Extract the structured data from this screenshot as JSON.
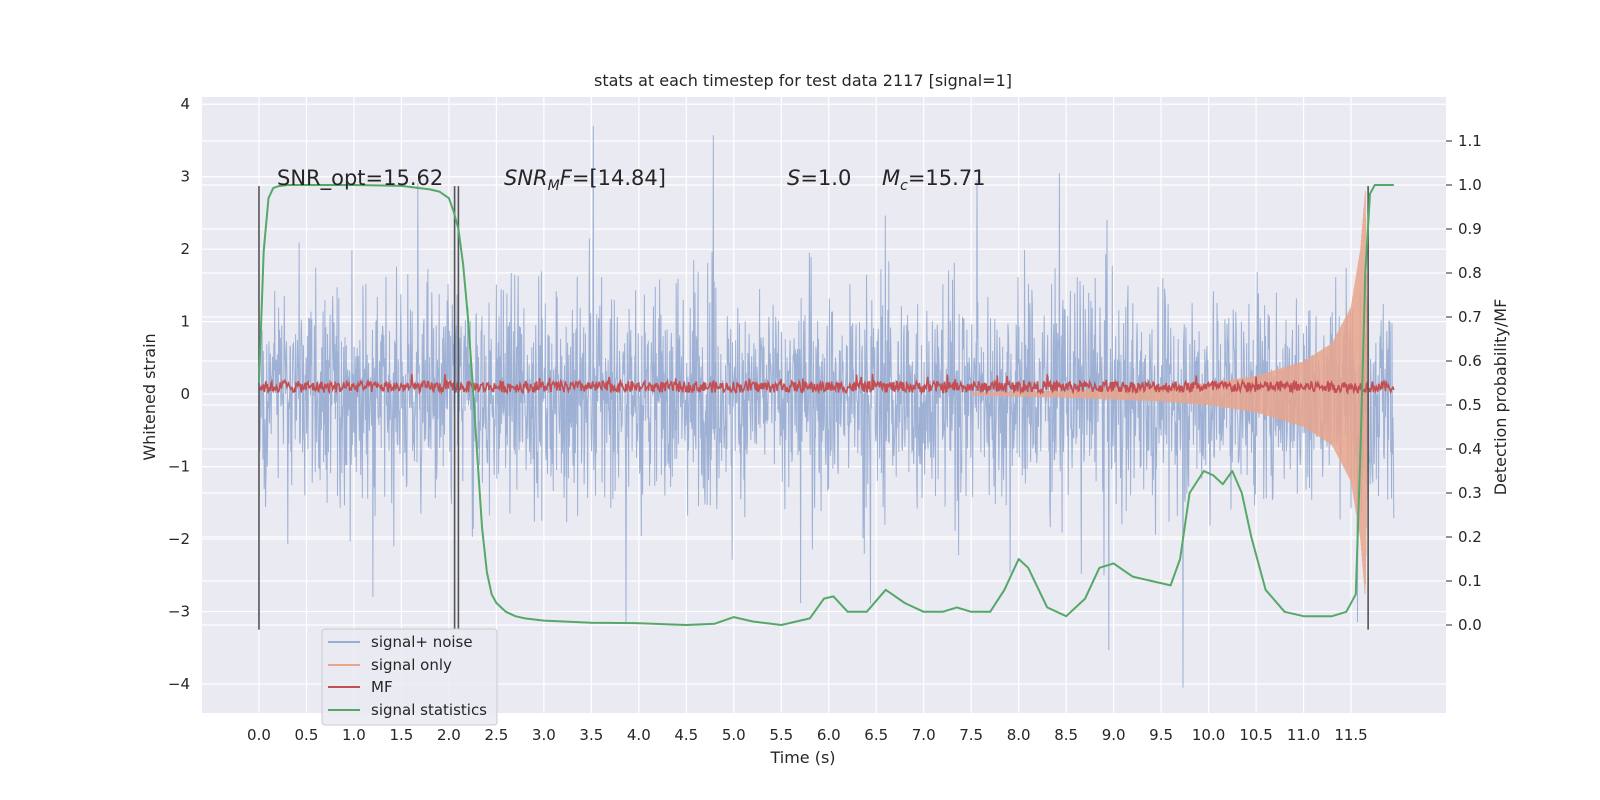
{
  "chart_data": {
    "type": "line",
    "title": "stats at each timestep for test data 2117 [signal=1]",
    "xlabel": "Time (s)",
    "ylabel": "Whitened strain",
    "y2label": "Detection probability/MF",
    "xlim": [
      -0.6,
      12.5
    ],
    "ylim": [
      -4.4,
      4.1
    ],
    "y2lim": [
      -0.2,
      1.2
    ],
    "x_ticks": [
      "0.0",
      "0.5",
      "1.0",
      "1.5",
      "2.0",
      "2.5",
      "3.0",
      "3.5",
      "4.0",
      "4.5",
      "5.0",
      "5.5",
      "6.0",
      "6.5",
      "7.0",
      "7.5",
      "8.0",
      "8.5",
      "9.0",
      "9.5",
      "10.0",
      "10.5",
      "11.0",
      "11.5"
    ],
    "y_ticks": [
      "4",
      "3",
      "2",
      "1",
      "0",
      "−1",
      "−2",
      "−3",
      "−4"
    ],
    "y2_ticks": [
      "0.0",
      "0.1",
      "0.2",
      "0.3",
      "0.4",
      "0.5",
      "0.6",
      "0.7",
      "0.8",
      "0.9",
      "1.0",
      "1.1"
    ],
    "grid": true,
    "legend_position": "lower-left",
    "colors": {
      "background": "#eaeaf2",
      "grid": "#ffffff",
      "signal_noise": "#9aaed3",
      "signal_only": "#e8a58c",
      "mf": "#c44e52",
      "signal_statistics": "#55a868",
      "vlines": "#555555"
    },
    "annotations": {
      "snr_opt": "SNR_opt=15.62",
      "snr_mf_prefix": "SNR",
      "snr_mf_sub": "M",
      "snr_mf_f": "F",
      "snr_mf_value": "=[14.84]",
      "s_sym": "S",
      "s_value": "=1.0",
      "mc_sym": "M",
      "mc_sub": "c",
      "mc_value": "=15.71"
    },
    "series": [
      {
        "name": "signal+ noise",
        "kind": "noisy strain, amplitude band approx ±1.6, spikes up to ±3.7",
        "x_range": [
          0.0,
          11.95
        ]
      },
      {
        "name": "signal only",
        "kind": "chirp envelope",
        "x": [
          7.5,
          8.5,
          9.5,
          10.0,
          10.5,
          11.0,
          11.3,
          11.5,
          11.6,
          11.65,
          11.68
        ],
        "envelope": [
          0.02,
          0.05,
          0.1,
          0.15,
          0.25,
          0.45,
          0.7,
          1.2,
          2.0,
          2.8,
          0.3
        ]
      },
      {
        "name": "MF",
        "kind": "matched-filter output near zero, fluctuating ~0.0–0.3",
        "x_range": [
          0.0,
          11.95
        ],
        "level": 0.1
      },
      {
        "name": "signal statistics",
        "axis": "right",
        "x": [
          0.0,
          0.05,
          0.1,
          0.15,
          0.2,
          0.3,
          0.5,
          1.0,
          1.5,
          1.8,
          1.9,
          2.0,
          2.05,
          2.1,
          2.15,
          2.2,
          2.25,
          2.3,
          2.35,
          2.4,
          2.45,
          2.5,
          2.55,
          2.6,
          2.7,
          2.8,
          3.0,
          3.5,
          4.0,
          4.5,
          4.8,
          5.0,
          5.2,
          5.5,
          5.8,
          5.95,
          6.05,
          6.2,
          6.4,
          6.6,
          6.8,
          7.0,
          7.2,
          7.35,
          7.5,
          7.7,
          7.85,
          8.0,
          8.1,
          8.3,
          8.5,
          8.7,
          8.85,
          9.0,
          9.2,
          9.4,
          9.6,
          9.7,
          9.8,
          9.95,
          10.05,
          10.15,
          10.25,
          10.35,
          10.45,
          10.6,
          10.8,
          11.0,
          11.3,
          11.45,
          11.55,
          11.6,
          11.65,
          11.7,
          11.75,
          11.8,
          11.85,
          11.95
        ],
        "values": [
          0.55,
          0.85,
          0.97,
          0.993,
          0.997,
          1.0,
          1.0,
          1.0,
          0.998,
          0.99,
          0.985,
          0.97,
          0.94,
          0.9,
          0.82,
          0.7,
          0.55,
          0.38,
          0.22,
          0.12,
          0.07,
          0.05,
          0.04,
          0.03,
          0.02,
          0.015,
          0.01,
          0.005,
          0.004,
          0.0,
          0.003,
          0.018,
          0.008,
          0.0,
          0.015,
          0.06,
          0.065,
          0.03,
          0.03,
          0.08,
          0.05,
          0.03,
          0.03,
          0.04,
          0.03,
          0.03,
          0.08,
          0.15,
          0.13,
          0.04,
          0.02,
          0.06,
          0.13,
          0.14,
          0.11,
          0.1,
          0.09,
          0.15,
          0.3,
          0.35,
          0.34,
          0.32,
          0.35,
          0.3,
          0.2,
          0.08,
          0.03,
          0.02,
          0.02,
          0.03,
          0.07,
          0.4,
          0.8,
          0.98,
          1.0,
          1.0,
          1.0,
          1.0
        ]
      }
    ],
    "vlines": [
      {
        "x": 0.0,
        "y": [
          -3.25,
          2.87
        ]
      },
      {
        "x": 2.06,
        "y": [
          -3.25,
          2.87
        ]
      },
      {
        "x": 2.1,
        "y": [
          -3.25,
          2.87
        ]
      },
      {
        "x": 11.68,
        "y": [
          -3.25,
          2.87
        ]
      }
    ]
  }
}
